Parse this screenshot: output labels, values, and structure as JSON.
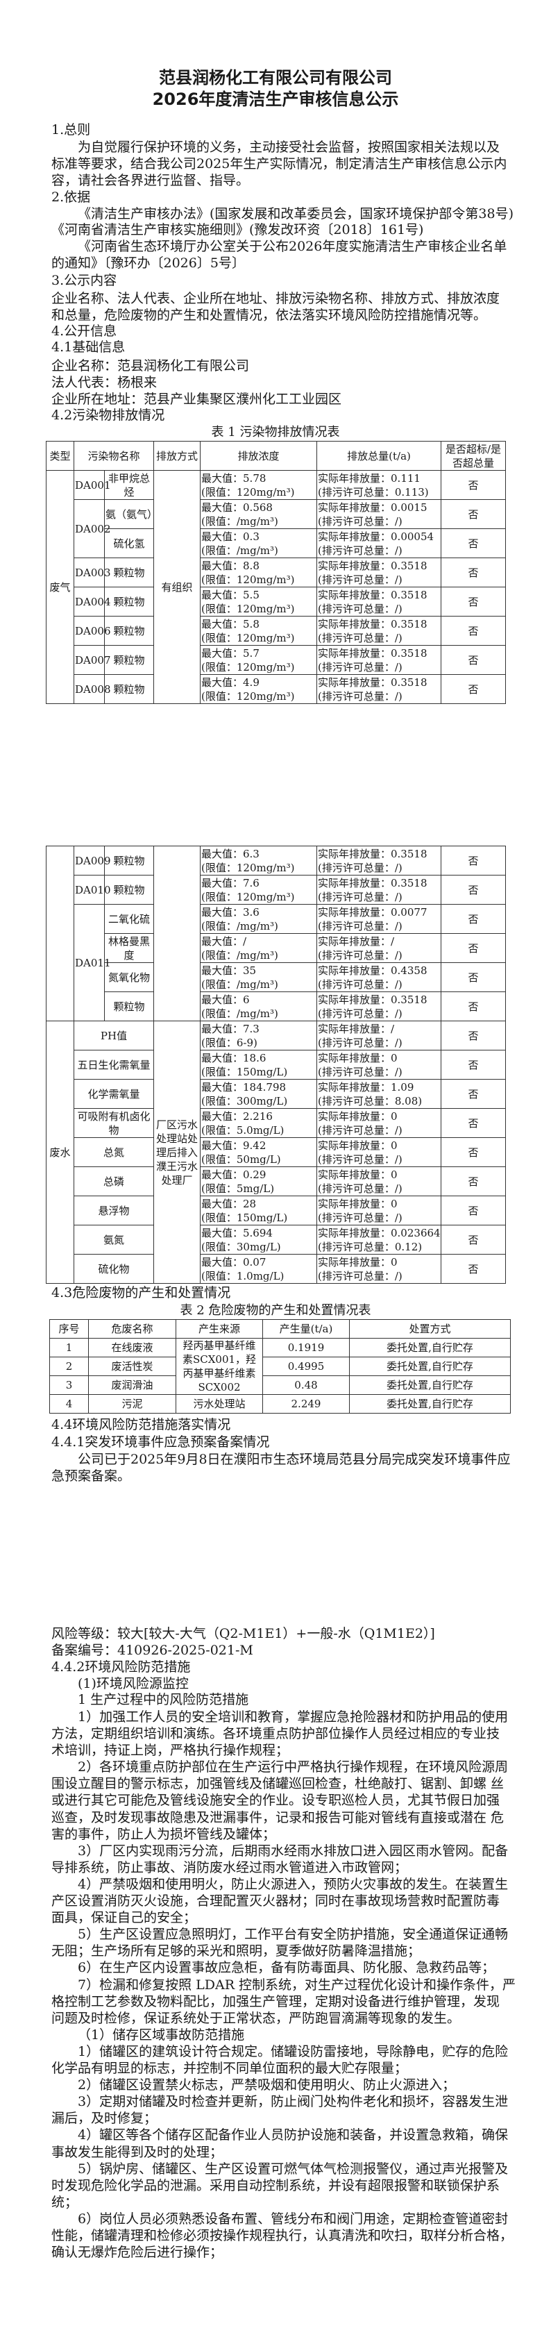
{
  "title": {
    "line1": "范县润杨化工有限公司有限公司",
    "line2": "2026年度清洁生产审核信息公示"
  },
  "general": {
    "heading": "1.总则",
    "paragraph": [
      "为自觉履行保护环境的义务，主动接受社会监督，按照国家相关法规以及",
      "标准等要求，结合我公司2025年生产实际情况，制定清洁生产审核信息公示内",
      "容，请社会各界进行监督、指导。"
    ]
  },
  "basis": {
    "heading": "2.依据",
    "item1": [
      "《清洁生产审核办法》(国家发展和改革委员会，国家环境保护部令第38号)"
    ],
    "item2": [
      "《河南省清洁生产审核实施细则》(豫发改环资〔2018〕161号)"
    ],
    "item3": [
      "《河南省生态环境厅办公室关于公布2026年度实施清洁生产审核企业名单",
      "的通知》〔豫环办〔2026〕5号〕"
    ]
  },
  "content": {
    "heading": "3.公示内容",
    "paragraph": [
      "企业名称、法人代表、企业所在地址、排放污染物名称、排放方式、排放浓度",
      "和总量，危险废物的产生和处置情况，依法落实环境风险防控措施情况等。"
    ]
  },
  "info": {
    "heading": "4.公开信息",
    "basic_heading": "4.1基础信息",
    "company": "企业名称：范县润杨化工有限公司",
    "legal_rep": "法人代表：杨根来",
    "address": "企业所在地址：范县产业集聚区濮州化工工业园区",
    "pollution_heading": "4.2污染物排放情况"
  },
  "table1": {
    "caption": "表 1 污染物排放情况表",
    "headers": [
      "类型",
      "污染物名称",
      "排放方式",
      "排放浓度",
      "排放总量(t/a)",
      "是否超标/是否超总量"
    ],
    "gas_page1": {
      "type": "废气",
      "method": "有组织",
      "rows": [
        {
          "outlet": "DA001",
          "pollutant": "非甲烷总烃",
          "max": "最大值：5.78",
          "limit": "(限值：120mg/m³)",
          "actual": "实际年排放量：0.111",
          "permit": "(排污许可总量：0.113)",
          "exceed": "否"
        },
        {
          "outlet": "DA002",
          "pollutant": "氨（氨气）",
          "max": "最大值：0.568",
          "limit": "(限值：/mg/m³)",
          "actual": "实际年排放量：0.0015",
          "permit": "(排污许可总量：/)",
          "exceed": "否"
        },
        {
          "outlet": "DA002",
          "pollutant": "硫化氢",
          "max": "最大值：0.3",
          "limit": "(限值：/mg/m³)",
          "actual": "实际年排放量：0.00054",
          "permit": "(排污许可总量：/)",
          "exceed": "否"
        },
        {
          "outlet": "DA003",
          "pollutant": "颗粒物",
          "max": "最大值：8.8",
          "limit": "(限值：120mg/m³)",
          "actual": "实际年排放量：0.3518",
          "permit": "(排污许可总量：/)",
          "exceed": "否"
        },
        {
          "outlet": "DA004",
          "pollutant": "颗粒物",
          "max": "最大值：5.5",
          "limit": "(限值：120mg/m³)",
          "actual": "实际年排放量：0.3518",
          "permit": "(排污许可总量：/)",
          "exceed": "否"
        },
        {
          "outlet": "DA006",
          "pollutant": "颗粒物",
          "max": "最大值：5.8",
          "limit": "(限值：120mg/m³)",
          "actual": "实际年排放量：0.3518",
          "permit": "(排污许可总量：/)",
          "exceed": "否"
        },
        {
          "outlet": "DA007",
          "pollutant": "颗粒物",
          "max": "最大值：5.7",
          "limit": "(限值：120mg/m³)",
          "actual": "实际年排放量：0.3518",
          "permit": "(排污许可总量：/)",
          "exceed": "否"
        },
        {
          "outlet": "DA008",
          "pollutant": "颗粒物",
          "max": "最大值：4.9",
          "limit": "(限值：120mg/m³)",
          "actual": "实际年排放量：0.3518",
          "permit": "(排污许可总量：/)",
          "exceed": "否"
        }
      ]
    },
    "gas_page2": {
      "rows": [
        {
          "outlet": "DA009",
          "pollutant": "颗粒物",
          "max": "最大值：6.3",
          "limit": "(限值：120mg/m³)",
          "actual": "实际年排放量：0.3518",
          "permit": "(排污许可总量：/)",
          "exceed": "否"
        },
        {
          "outlet": "DA010",
          "pollutant": "颗粒物",
          "max": "最大值：7.6",
          "limit": "(限值：120mg/m³)",
          "actual": "实际年排放量：0.3518",
          "permit": "(排污许可总量：/)",
          "exceed": "否"
        },
        {
          "outlet": "DA011",
          "pollutant": "二氧化硫",
          "max": "最大值：3.6",
          "limit": "(限值：/mg/m³)",
          "actual": "实际年排放量：0.0077",
          "permit": "(排污许可总量：/)",
          "exceed": "否"
        },
        {
          "outlet": "DA011",
          "pollutant": "林格曼黑度",
          "max": "最大值：/",
          "limit": "(限值：/mg/m³)",
          "actual": "实际年排放量：/",
          "permit": "(排污许可总量：/)",
          "exceed": "否"
        },
        {
          "outlet": "DA011",
          "pollutant": "氮氧化物",
          "max": "最大值：35",
          "limit": "(限值：/mg/m³)",
          "actual": "实际年排放量：0.4358",
          "permit": "(排污许可总量：/)",
          "exceed": "否"
        },
        {
          "outlet": "DA011",
          "pollutant": "颗粒物",
          "max": "最大值：6",
          "limit": "(限值：/mg/m³)",
          "actual": "实际年排放量：0.3518",
          "permit": "(排污许可总量：/)",
          "exceed": "否"
        }
      ]
    },
    "water": {
      "type": "废水",
      "method": "厂区污水处理站处理后排入濮王污水处理厂",
      "rows": [
        {
          "pollutant": "PH值",
          "max": "最大值：7.3",
          "limit": "(限值：6-9)",
          "actual": "实际年排放量：/",
          "permit": "(排污许可总量：/)",
          "exceed": "否"
        },
        {
          "pollutant": "五日生化需氧量",
          "max": "最大值：18.6",
          "limit": "(限值：150mg/L)",
          "actual": "实际年排放量：0",
          "permit": "(排污许可总量：/)",
          "exceed": "否"
        },
        {
          "pollutant": "化学需氧量",
          "max": "最大值：184.798",
          "limit": "(限值：300mg/L)",
          "actual": "实际年排放量：1.09",
          "permit": "(排污许可总量：8.08)",
          "exceed": "否"
        },
        {
          "pollutant": "可吸附有机卤化物",
          "max": "最大值：2.216",
          "limit": "(限值：5.0mg/L)",
          "actual": "实际年排放量：0",
          "permit": "(排污许可总量：/)",
          "exceed": "否"
        },
        {
          "pollutant": "总氮",
          "max": "最大值：9.42",
          "limit": "(限值：50mg/L)",
          "actual": "实际年排放量：0",
          "permit": "(排污许可总量：/)",
          "exceed": "否"
        },
        {
          "pollutant": "总磷",
          "max": "最大值：0.29",
          "limit": "(限值：5mg/L)",
          "actual": "实际年排放量：0",
          "permit": "(排污许可总量：/)",
          "exceed": "否"
        },
        {
          "pollutant": "悬浮物",
          "max": "最大值：28",
          "limit": "(限值：150mg/L)",
          "actual": "实际年排放量：0",
          "permit": "(排污许可总量：/)",
          "exceed": "否"
        },
        {
          "pollutant": "氨氮",
          "max": "最大值：5.694",
          "limit": "(限值：30mg/L)",
          "actual": "实际年排放量：0.023664",
          "permit": "(排污许可总量：0.12)",
          "exceed": "否"
        },
        {
          "pollutant": "硫化物",
          "max": "最大值：0.07",
          "limit": "(限值：1.0mg/L)",
          "actual": "实际年排放量：0",
          "permit": "(排污许可总量：/)",
          "exceed": "否"
        }
      ]
    }
  },
  "hazardous": {
    "heading": "4.3危险废物的产生和处置情况",
    "caption": "表 2 危险废物的产生和处置情况表",
    "headers": [
      "序号",
      "危废名称",
      "产生来源",
      "产生量(t/a)",
      "处置方式"
    ],
    "shared_source": "羟丙基甲基纤维素SCX001，羟丙基甲基纤维素SCX002",
    "rows": [
      {
        "no": "1",
        "name": "在线废液",
        "amount": "0.1919",
        "disposal": "委托处置,自行贮存"
      },
      {
        "no": "2",
        "name": "废活性炭",
        "amount": "0.4995",
        "disposal": "委托处置,自行贮存"
      },
      {
        "no": "3",
        "name": "废润滑油",
        "amount": "0.48",
        "disposal": "委托处置,自行贮存"
      },
      {
        "no": "4",
        "name": "污泥",
        "source": "污水处理站",
        "amount": "2.249",
        "disposal": "委托处置,自行贮存"
      }
    ]
  },
  "risk": {
    "heading": "4.4环境风险防范措施落实情况",
    "plan_heading": "4.4.1突发环境事件应急预案备案情况",
    "plan_paragraph": [
      "公司已于2025年9月8日在濮阳市生态环境局范县分局完成突发环境事件应",
      "急预案备案。"
    ],
    "level": "风险等级：较大[较大-大气（Q2-M1E1）+一般-水（Q1M1E2）]",
    "record_no": "备案编号：410926-2025-021-M",
    "measures_heading": "4.4.2环境风险防范措施",
    "monitor_heading": "(1)环境风险源监控",
    "production_heading": "1 生产过程中的风险防范措施",
    "items": [
      [
        "1）加强工作人员的安全培训和教育，掌握应急抢险器材和防护用品的使用",
        "方法，定期组织培训和演练。各环境重点防护部位操作人员经过相应的专业技",
        "术培训，持证上岗，严格执行操作规程；"
      ],
      [
        "2）各环境重点防护部位在生产运行中严格执行操作规程，在环境风险源周",
        "围设立醒目的警示标志，加强管线及储罐巡回检查，杜绝敲打、锯割、卸螺 丝",
        "或进行其它可能危及管线设施安全的作业。设专职巡检人员，尤其节假日加强",
        "巡查，及时发现事故隐患及泄漏事件，记录和报告可能对管线有直接或潜在 危",
        "害的事件，防止人为损坏管线及罐体；"
      ],
      [
        "3）厂区内实现雨污分流，后期雨水经雨水排放口进入园区雨水管网。配备",
        "导排系统，防止事故、消防废水经过雨水管道进入市政管网；"
      ],
      [
        "4）严禁吸烟和使用明火，防止火源进入，预防火灾事故的发生。在装置生",
        "产区设置消防灭火设施，合理配置灭火器材；同时在事故现场营救时配置防毒",
        "面具，保证自己的安全；"
      ],
      [
        "5）生产区设置应急照明灯，工作平台有安全防护措施，安全通道保证通畅",
        "无阻；生产场所有足够的采光和照明，夏季做好防暑降温措施；"
      ],
      [
        "6）在生产区内设置事故应急柜，备有防毒面具、防化服、急救药品等；"
      ],
      [
        "7）检漏和修复按照 LDAR 控制系统，对生产过程优化设计和操作条件，严",
        "格控制工艺参数及物料配比，加强生产管理，定期对设备进行维护管理，发现",
        "问题及时检修，保证系统处于正常状态，严防跑冒滴漏等现象的发生。"
      ],
      [
        "（1）储存区域事故防范措施"
      ],
      [
        "1）储罐区的建筑设计符合规定。储罐设防雷接地，导除静电，贮存的危险",
        "化学品有明显的标志，并控制不同单位面积的最大贮存限量；"
      ],
      [
        "2）储罐区设置禁火标志，严禁吸烟和使用明火、防止火源进入；"
      ],
      [
        "3）定期对储罐及时检查并更新，防止阀门处构件老化和损坏，容器发生泄",
        "漏后，及时修复；"
      ],
      [
        "4）罐区等各个储存区配备作业人员防护设施和装备，并设置急救箱，确保",
        "事故发生能得到及时的处理；"
      ],
      [
        "5）锅炉房、储罐区、生产区设置可燃气体气检测报警仪，通过声光报警及",
        "时发现危险化学品的泄漏。采用自动控制系统，并设有超限报警和联锁保护系",
        "统；"
      ],
      [
        "6）岗位人员必须熟悉设备布置、管线分布和阀门用途，定期检查管道密封",
        "性能，储罐清理和检修必须按操作规程执行，认真清洗和吹扫，取样分析合格，",
        "确认无爆炸危险后进行操作；"
      ]
    ]
  }
}
